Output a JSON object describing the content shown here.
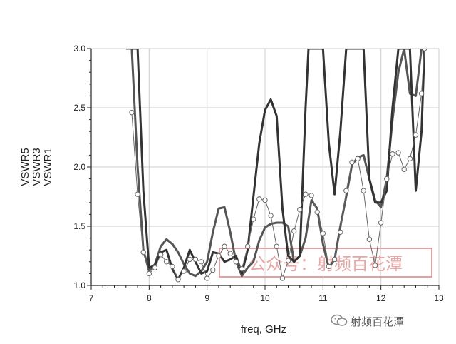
{
  "chart_data": {
    "type": "line",
    "xlabel": "freq, GHz",
    "ylabels": [
      "VSWR5",
      "VSWR3",
      "VSWR1"
    ],
    "xlim": [
      7,
      13
    ],
    "ylim": [
      1.0,
      3.0
    ],
    "xticks": [
      "7",
      "8",
      "9",
      "10",
      "11",
      "12",
      "13"
    ],
    "yticks": [
      "1.0",
      "1.5",
      "2.0",
      "2.5",
      "3.0"
    ],
    "grid": true,
    "series": [
      {
        "name": "VSWR5",
        "color": "#555555",
        "x": [
          7.6,
          7.7,
          7.8,
          7.9,
          8.0,
          8.1,
          8.2,
          8.3,
          8.4,
          8.5,
          8.6,
          8.7,
          8.8,
          8.9,
          9.0,
          9.1,
          9.2,
          9.3,
          9.4,
          9.5,
          9.6,
          9.7,
          9.8,
          9.9,
          10.0,
          10.1,
          10.2,
          10.3,
          10.4,
          10.5,
          10.6,
          10.7,
          10.8,
          10.9,
          11.0,
          11.1,
          11.2,
          11.3,
          11.4,
          11.5,
          11.6,
          11.7,
          11.8,
          11.9,
          12.0,
          12.1,
          12.2,
          12.3,
          12.4,
          12.5,
          12.6,
          12.7,
          12.75
        ],
        "values": [
          3.0,
          3.0,
          2.0,
          1.3,
          1.12,
          1.18,
          1.33,
          1.39,
          1.35,
          1.28,
          1.18,
          1.1,
          1.08,
          1.12,
          1.2,
          1.45,
          1.65,
          1.66,
          1.45,
          1.2,
          1.08,
          1.15,
          1.2,
          1.38,
          1.49,
          1.52,
          1.53,
          1.53,
          1.5,
          1.2,
          1.25,
          1.4,
          1.72,
          1.65,
          1.35,
          1.15,
          1.22,
          1.5,
          1.75,
          2.02,
          2.08,
          2.1,
          1.9,
          1.72,
          1.66,
          1.9,
          2.4,
          2.8,
          3.0,
          2.62,
          2.6,
          3.0,
          3.0
        ]
      },
      {
        "name": "VSWR3",
        "color": "#333333",
        "x": [
          7.7,
          7.8,
          7.9,
          8.0,
          8.1,
          8.2,
          8.3,
          8.4,
          8.5,
          8.6,
          8.7,
          8.8,
          8.9,
          9.0,
          9.1,
          9.2,
          9.3,
          9.4,
          9.5,
          9.6,
          9.7,
          9.8,
          9.9,
          10.0,
          10.1,
          10.2,
          10.3,
          10.4,
          10.5,
          10.6,
          10.7,
          10.75,
          11.0,
          11.1,
          11.2,
          11.3,
          11.4,
          11.5,
          11.6,
          11.7,
          11.8,
          11.9,
          12.0,
          12.1,
          12.2,
          12.3,
          12.4,
          12.5,
          12.6,
          12.7,
          12.75
        ],
        "values": [
          3.0,
          3.0,
          1.8,
          1.15,
          1.17,
          1.28,
          1.3,
          1.14,
          1.05,
          1.15,
          1.3,
          1.2,
          1.1,
          1.12,
          1.28,
          1.27,
          1.2,
          1.22,
          1.25,
          1.1,
          1.3,
          1.75,
          2.2,
          2.48,
          2.57,
          2.43,
          1.65,
          1.25,
          1.2,
          1.25,
          2.5,
          3.0,
          3.0,
          2.2,
          1.77,
          2.3,
          3.0,
          3.0,
          3.0,
          3.0,
          1.9,
          1.7,
          1.7,
          1.8,
          2.5,
          3.0,
          3.0,
          3.0,
          1.8,
          2.3,
          3.0
        ]
      },
      {
        "name": "VSWR1",
        "color": "#666666",
        "marker": "circle",
        "x": [
          7.7,
          7.8,
          7.9,
          8.0,
          8.1,
          8.2,
          8.3,
          8.4,
          8.5,
          8.6,
          8.7,
          8.8,
          8.9,
          9.0,
          9.1,
          9.2,
          9.3,
          9.4,
          9.5,
          9.6,
          9.7,
          9.8,
          9.9,
          10.0,
          10.1,
          10.2,
          10.3,
          10.4,
          10.5,
          10.6,
          10.7,
          10.8,
          10.9,
          11.0,
          11.1,
          11.2,
          11.3,
          11.4,
          11.5,
          11.6,
          11.7,
          11.8,
          11.9,
          12.0,
          12.1,
          12.2,
          12.3,
          12.4,
          12.5,
          12.6,
          12.7,
          12.75
        ],
        "values": [
          2.46,
          1.77,
          1.28,
          1.1,
          1.15,
          1.26,
          1.2,
          1.16,
          1.05,
          1.12,
          1.22,
          1.22,
          1.2,
          1.06,
          1.13,
          1.25,
          1.33,
          1.27,
          1.2,
          1.14,
          1.33,
          1.56,
          1.73,
          1.72,
          1.59,
          1.33,
          1.06,
          1.21,
          1.46,
          1.64,
          1.77,
          1.76,
          1.62,
          1.44,
          1.16,
          1.22,
          1.45,
          1.8,
          2.04,
          2.07,
          1.8,
          1.39,
          1.17,
          1.53,
          1.9,
          2.11,
          2.12,
          1.98,
          2.07,
          2.27,
          2.62,
          3.0
        ]
      }
    ]
  },
  "watermark": {
    "center": "公众号：射频百花潭",
    "footer": "射频百花潭"
  }
}
